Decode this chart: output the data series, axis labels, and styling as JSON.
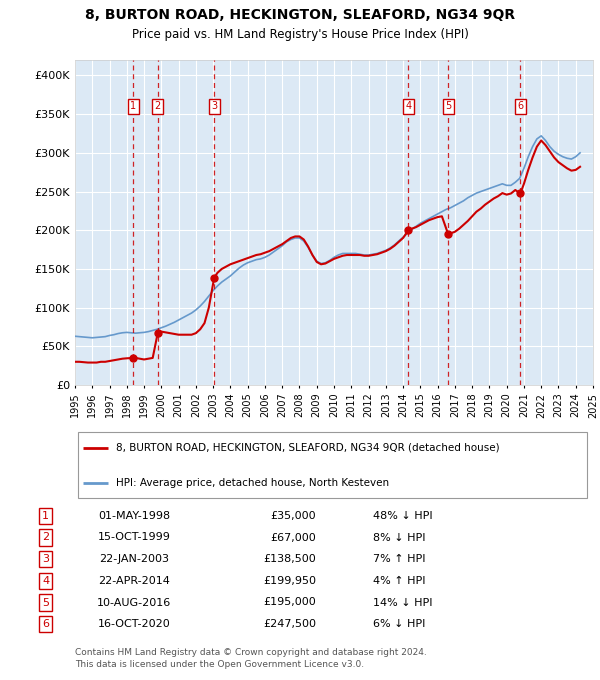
{
  "title1": "8, BURTON ROAD, HECKINGTON, SLEAFORD, NG34 9QR",
  "title2": "Price paid vs. HM Land Registry's House Price Index (HPI)",
  "bg_color": "#dce9f5",
  "red_color": "#cc0000",
  "blue_color": "#6699cc",
  "ylim": [
    0,
    420000
  ],
  "yticks": [
    0,
    50000,
    100000,
    150000,
    200000,
    250000,
    300000,
    350000,
    400000
  ],
  "ytick_labels": [
    "£0",
    "£50K",
    "£100K",
    "£150K",
    "£200K",
    "£250K",
    "£300K",
    "£350K",
    "£400K"
  ],
  "xmin": 1995,
  "xmax": 2025,
  "transactions": [
    {
      "num": 1,
      "date": "01-MAY-1998",
      "year": 1998.37,
      "price": 35000,
      "pct": "48%",
      "dir": "↓"
    },
    {
      "num": 2,
      "date": "15-OCT-1999",
      "year": 1999.79,
      "price": 67000,
      "pct": "8%",
      "dir": "↓"
    },
    {
      "num": 3,
      "date": "22-JAN-2003",
      "year": 2003.06,
      "price": 138500,
      "pct": "7%",
      "dir": "↑"
    },
    {
      "num": 4,
      "date": "22-APR-2014",
      "year": 2014.31,
      "price": 199950,
      "pct": "4%",
      "dir": "↑"
    },
    {
      "num": 5,
      "date": "10-AUG-2016",
      "year": 2016.61,
      "price": 195000,
      "pct": "14%",
      "dir": "↓"
    },
    {
      "num": 6,
      "date": "16-OCT-2020",
      "year": 2020.79,
      "price": 247500,
      "pct": "6%",
      "dir": "↓"
    }
  ],
  "hpi_years": [
    1995.0,
    1995.25,
    1995.5,
    1995.75,
    1996.0,
    1996.25,
    1996.5,
    1996.75,
    1997.0,
    1997.25,
    1997.5,
    1997.75,
    1998.0,
    1998.25,
    1998.5,
    1998.75,
    1999.0,
    1999.25,
    1999.5,
    1999.75,
    2000.0,
    2000.25,
    2000.5,
    2000.75,
    2001.0,
    2001.25,
    2001.5,
    2001.75,
    2002.0,
    2002.25,
    2002.5,
    2002.75,
    2003.0,
    2003.25,
    2003.5,
    2003.75,
    2004.0,
    2004.25,
    2004.5,
    2004.75,
    2005.0,
    2005.25,
    2005.5,
    2005.75,
    2006.0,
    2006.25,
    2006.5,
    2006.75,
    2007.0,
    2007.25,
    2007.5,
    2007.75,
    2008.0,
    2008.25,
    2008.5,
    2008.75,
    2009.0,
    2009.25,
    2009.5,
    2009.75,
    2010.0,
    2010.25,
    2010.5,
    2010.75,
    2011.0,
    2011.25,
    2011.5,
    2011.75,
    2012.0,
    2012.25,
    2012.5,
    2012.75,
    2013.0,
    2013.25,
    2013.5,
    2013.75,
    2014.0,
    2014.25,
    2014.5,
    2014.75,
    2015.0,
    2015.25,
    2015.5,
    2015.75,
    2016.0,
    2016.25,
    2016.5,
    2016.75,
    2017.0,
    2017.25,
    2017.5,
    2017.75,
    2018.0,
    2018.25,
    2018.5,
    2018.75,
    2019.0,
    2019.25,
    2019.5,
    2019.75,
    2020.0,
    2020.25,
    2020.5,
    2020.75,
    2021.0,
    2021.25,
    2021.5,
    2021.75,
    2022.0,
    2022.25,
    2022.5,
    2022.75,
    2023.0,
    2023.25,
    2023.5,
    2023.75,
    2024.0,
    2024.25
  ],
  "hpi_values": [
    63000,
    62500,
    62000,
    61500,
    61000,
    61500,
    62000,
    62500,
    64000,
    65000,
    66500,
    67500,
    68000,
    67500,
    67000,
    67500,
    68000,
    69000,
    70500,
    72000,
    74000,
    76000,
    78500,
    81000,
    84000,
    87000,
    90000,
    93000,
    97000,
    102000,
    108000,
    115000,
    122000,
    128000,
    133000,
    137000,
    141000,
    146000,
    151000,
    155000,
    158000,
    160000,
    162000,
    163000,
    165000,
    168000,
    172000,
    176000,
    180000,
    185000,
    188000,
    190000,
    190000,
    186000,
    178000,
    168000,
    160000,
    157000,
    158000,
    161000,
    165000,
    168000,
    170000,
    170000,
    170000,
    170000,
    169000,
    168000,
    168000,
    169000,
    170000,
    172000,
    174000,
    177000,
    181000,
    186000,
    191000,
    196000,
    201000,
    205000,
    209000,
    212000,
    215000,
    218000,
    221000,
    224000,
    227000,
    229000,
    232000,
    235000,
    238000,
    242000,
    245000,
    248000,
    250000,
    252000,
    254000,
    256000,
    258000,
    260000,
    258000,
    258000,
    262000,
    267000,
    280000,
    295000,
    308000,
    318000,
    322000,
    316000,
    308000,
    302000,
    298000,
    295000,
    293000,
    292000,
    295000,
    300000
  ],
  "red_line_years": [
    1995.0,
    1995.25,
    1995.5,
    1995.75,
    1996.0,
    1996.25,
    1996.5,
    1996.75,
    1997.0,
    1997.25,
    1997.5,
    1997.75,
    1998.0,
    1998.37,
    1998.5,
    1998.75,
    1999.0,
    1999.25,
    1999.5,
    1999.79,
    2000.0,
    2000.25,
    2000.5,
    2000.75,
    2001.0,
    2001.25,
    2001.5,
    2001.75,
    2002.0,
    2002.25,
    2002.5,
    2002.75,
    2003.06,
    2003.25,
    2003.5,
    2003.75,
    2004.0,
    2004.25,
    2004.5,
    2004.75,
    2005.0,
    2005.25,
    2005.5,
    2005.75,
    2006.0,
    2006.25,
    2006.5,
    2006.75,
    2007.0,
    2007.25,
    2007.5,
    2007.75,
    2008.0,
    2008.25,
    2008.5,
    2008.75,
    2009.0,
    2009.25,
    2009.5,
    2009.75,
    2010.0,
    2010.25,
    2010.5,
    2010.75,
    2011.0,
    2011.25,
    2011.5,
    2011.75,
    2012.0,
    2012.25,
    2012.5,
    2012.75,
    2013.0,
    2013.25,
    2013.5,
    2013.75,
    2014.0,
    2014.31,
    2014.5,
    2014.75,
    2015.0,
    2015.25,
    2015.5,
    2015.75,
    2016.0,
    2016.25,
    2016.61,
    2016.75,
    2017.0,
    2017.25,
    2017.5,
    2017.75,
    2018.0,
    2018.25,
    2018.5,
    2018.75,
    2019.0,
    2019.25,
    2019.5,
    2019.75,
    2020.0,
    2020.25,
    2020.5,
    2020.79,
    2021.0,
    2021.25,
    2021.5,
    2021.75,
    2022.0,
    2022.25,
    2022.5,
    2022.75,
    2023.0,
    2023.25,
    2023.5,
    2023.75,
    2024.0,
    2024.25
  ],
  "red_line_values": [
    30000,
    30000,
    29500,
    29000,
    29000,
    29000,
    30000,
    30000,
    31000,
    32000,
    33000,
    34000,
    34500,
    35000,
    35000,
    34000,
    33000,
    34000,
    35000,
    67000,
    69000,
    68000,
    67000,
    66000,
    65000,
    65000,
    65000,
    65000,
    67000,
    72000,
    80000,
    100000,
    138500,
    145000,
    150000,
    153000,
    156000,
    158000,
    160000,
    162000,
    164000,
    166000,
    168000,
    169000,
    171000,
    173000,
    176000,
    179000,
    182000,
    186000,
    190000,
    192000,
    192000,
    188000,
    179000,
    168000,
    159000,
    156000,
    157000,
    160000,
    163000,
    165000,
    167000,
    168000,
    168000,
    168000,
    168000,
    167000,
    167000,
    168000,
    169000,
    171000,
    173000,
    176000,
    180000,
    185000,
    190000,
    199950,
    202000,
    204000,
    207000,
    210000,
    213000,
    215000,
    217000,
    218000,
    195000,
    196000,
    198000,
    202000,
    207000,
    212000,
    218000,
    224000,
    228000,
    233000,
    237000,
    241000,
    244000,
    248000,
    246000,
    247500,
    252000,
    247500,
    260000,
    278000,
    294000,
    308000,
    316000,
    310000,
    302000,
    294000,
    288000,
    284000,
    280000,
    277000,
    278000,
    282000
  ],
  "legend_label_red": "8, BURTON ROAD, HECKINGTON, SLEAFORD, NG34 9QR (detached house)",
  "legend_label_blue": "HPI: Average price, detached house, North Kesteven",
  "footer1": "Contains HM Land Registry data © Crown copyright and database right 2024.",
  "footer2": "This data is licensed under the Open Government Licence v3.0."
}
